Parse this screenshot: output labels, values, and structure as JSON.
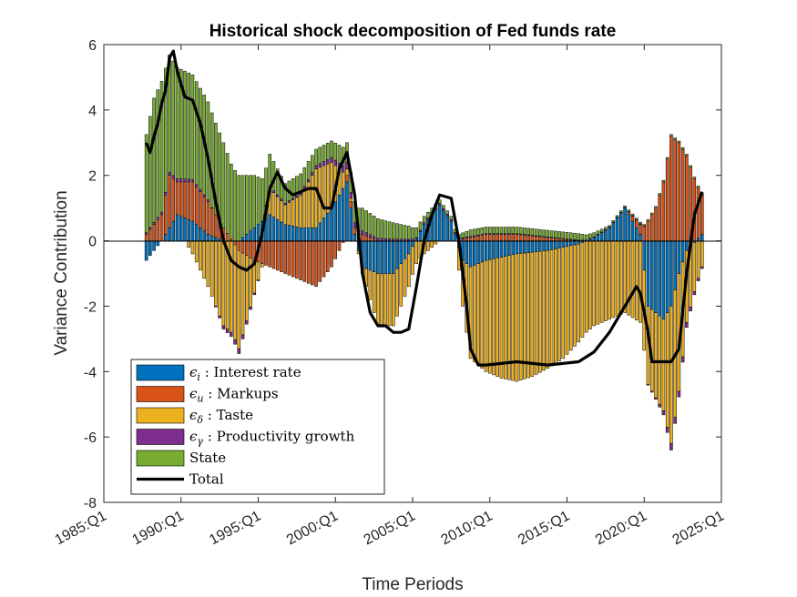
{
  "chart_data": {
    "type": "bar",
    "stacked": true,
    "title": "Historical shock decomposition of Fed funds rate",
    "xlabel": "Time Periods",
    "ylabel": "Variance Contribution",
    "xlim": [
      "1985:Q1",
      "2025:Q1"
    ],
    "ylim": [
      -8,
      6
    ],
    "yticks": [
      "-8",
      "-6",
      "-4",
      "-2",
      "0",
      "2",
      "4",
      "6"
    ],
    "xticks": [
      "1985:Q1",
      "1990:Q1",
      "1995:Q1",
      "2000:Q1",
      "2005:Q1",
      "2010:Q1",
      "2015:Q1",
      "2020:Q1",
      "2025:Q1"
    ],
    "grid": false,
    "legend_position": "bottom-left",
    "first_period": "1987:Q4",
    "last_period": "2023:Q4",
    "series": [
      {
        "name": "ϵ_i : Interest rate",
        "legend_symbol": "ϵ",
        "legend_subscript": "i",
        "legend_text": " : Interest rate",
        "color": "#0072BD",
        "knots": [
          [
            "1987:Q4",
            -0.6
          ],
          [
            "1988:Q4",
            0.0
          ],
          [
            "1989:Q4",
            0.8
          ],
          [
            "1990:Q4",
            0.6
          ],
          [
            "1991:Q4",
            0.2
          ],
          [
            "1992:Q4",
            0.0
          ],
          [
            "1993:Q4",
            0.0
          ],
          [
            "1994:Q4",
            0.4
          ],
          [
            "1995:Q4",
            0.8
          ],
          [
            "1996:Q4",
            0.5
          ],
          [
            "1997:Q4",
            0.4
          ],
          [
            "1998:Q4",
            0.4
          ],
          [
            "1999:Q4",
            1.0
          ],
          [
            "2000:Q4",
            1.8
          ],
          [
            "2001:Q2",
            0.2
          ],
          [
            "2001:Q4",
            -0.8
          ],
          [
            "2002:Q4",
            -1.0
          ],
          [
            "2003:Q4",
            -1.0
          ],
          [
            "2004:Q4",
            -0.4
          ],
          [
            "2005:Q4",
            0.5
          ],
          [
            "2006:Q4",
            1.1
          ],
          [
            "2007:Q3",
            0.6
          ],
          [
            "2008:Q2",
            -0.6
          ],
          [
            "2008:Q4",
            -0.8
          ],
          [
            "2009:Q4",
            -0.6
          ],
          [
            "2011:Q4",
            -0.4
          ],
          [
            "2013:Q4",
            -0.3
          ],
          [
            "2015:Q4",
            -0.1
          ],
          [
            "2016:Q4",
            0.1
          ],
          [
            "2017:Q4",
            0.4
          ],
          [
            "2018:Q4",
            1.0
          ],
          [
            "2019:Q4",
            0.2
          ],
          [
            "2020:Q2",
            -2.0
          ],
          [
            "2021:Q2",
            -2.4
          ],
          [
            "2021:Q4",
            -2.0
          ],
          [
            "2022:Q2",
            -1.0
          ],
          [
            "2022:Q4",
            -0.3
          ],
          [
            "2023:Q4",
            0.2
          ]
        ]
      },
      {
        "name": "ϵ_u : Markups",
        "legend_symbol": "ϵ",
        "legend_subscript": "u",
        "legend_text": " : Markups",
        "color": "#D95319",
        "knots": [
          [
            "1987:Q4",
            0.2
          ],
          [
            "1988:Q4",
            0.8
          ],
          [
            "1989:Q2",
            1.6
          ],
          [
            "1989:Q4",
            1.0
          ],
          [
            "1990:Q4",
            1.2
          ],
          [
            "1991:Q4",
            1.0
          ],
          [
            "1992:Q4",
            0.4
          ],
          [
            "1993:Q4",
            -0.3
          ],
          [
            "1994:Q4",
            -0.6
          ],
          [
            "1995:Q4",
            -0.8
          ],
          [
            "1996:Q4",
            -1.0
          ],
          [
            "1997:Q4",
            -1.2
          ],
          [
            "1998:Q4",
            -1.4
          ],
          [
            "1999:Q4",
            -0.8
          ],
          [
            "2000:Q4",
            0.2
          ],
          [
            "2001:Q4",
            0.2
          ],
          [
            "2002:Q4",
            0.0
          ],
          [
            "2004:Q4",
            0.0
          ],
          [
            "2006:Q4",
            0.0
          ],
          [
            "2007:Q4",
            0.0
          ],
          [
            "2008:Q4",
            0.1
          ],
          [
            "2009:Q4",
            0.2
          ],
          [
            "2011:Q4",
            0.2
          ],
          [
            "2013:Q4",
            0.1
          ],
          [
            "2015:Q4",
            0.0
          ],
          [
            "2017:Q4",
            0.0
          ],
          [
            "2018:Q4",
            0.0
          ],
          [
            "2019:Q4",
            0.3
          ],
          [
            "2020:Q2",
            0.6
          ],
          [
            "2020:Q4",
            1.0
          ],
          [
            "2021:Q2",
            1.8
          ],
          [
            "2021:Q4",
            3.2
          ],
          [
            "2022:Q2",
            3.0
          ],
          [
            "2022:Q4",
            2.6
          ],
          [
            "2023:Q4",
            1.2
          ]
        ]
      },
      {
        "name": "ϵ_δ : Taste",
        "legend_symbol": "ϵ",
        "legend_subscript": "δ",
        "legend_text": " : Taste",
        "color": "#EDB120",
        "knots": [
          [
            "1987:Q4",
            0.0
          ],
          [
            "1989:Q4",
            0.0
          ],
          [
            "1990:Q2",
            0.0
          ],
          [
            "1990:Q4",
            -0.4
          ],
          [
            "1991:Q4",
            -1.4
          ],
          [
            "1992:Q4",
            -2.6
          ],
          [
            "1993:Q4",
            -3.0
          ],
          [
            "1994:Q4",
            -1.0
          ],
          [
            "1995:Q4",
            0.8
          ],
          [
            "1996:Q4",
            0.6
          ],
          [
            "1997:Q4",
            1.0
          ],
          [
            "1998:Q4",
            1.8
          ],
          [
            "1999:Q4",
            1.4
          ],
          [
            "2000:Q4",
            0.2
          ],
          [
            "2001:Q4",
            -0.2
          ],
          [
            "2002:Q4",
            -1.6
          ],
          [
            "2003:Q4",
            -1.6
          ],
          [
            "2004:Q4",
            -1.0
          ],
          [
            "2005:Q4",
            -0.4
          ],
          [
            "2006:Q4",
            0.0
          ],
          [
            "2007:Q4",
            0.0
          ],
          [
            "2008:Q4",
            -2.8
          ],
          [
            "2009:Q4",
            -3.4
          ],
          [
            "2010:Q4",
            -3.7
          ],
          [
            "2011:Q4",
            -3.9
          ],
          [
            "2012:Q4",
            -3.8
          ],
          [
            "2013:Q4",
            -3.6
          ],
          [
            "2014:Q4",
            -3.4
          ],
          [
            "2015:Q4",
            -3.0
          ],
          [
            "2016:Q4",
            -2.6
          ],
          [
            "2017:Q4",
            -2.4
          ],
          [
            "2018:Q4",
            -2.2
          ],
          [
            "2019:Q4",
            -2.5
          ],
          [
            "2020:Q2",
            -2.4
          ],
          [
            "2020:Q4",
            -2.6
          ],
          [
            "2021:Q2",
            -2.8
          ],
          [
            "2021:Q4",
            -4.2
          ],
          [
            "2022:Q2",
            -3.6
          ],
          [
            "2022:Q4",
            -2.2
          ],
          [
            "2023:Q4",
            -0.8
          ]
        ]
      },
      {
        "name": "ϵ_γ : Productivity growth",
        "legend_symbol": "ϵ",
        "legend_subscript": "γ",
        "legend_text": " : Productivity growth",
        "color": "#7E2F8E",
        "knots": [
          [
            "1987:Q4",
            0.05
          ],
          [
            "1989:Q4",
            0.1
          ],
          [
            "1991:Q4",
            0.05
          ],
          [
            "1992:Q4",
            -0.1
          ],
          [
            "1993:Q4",
            -0.15
          ],
          [
            "1995:Q4",
            0.05
          ],
          [
            "1997:Q4",
            0.05
          ],
          [
            "1998:Q4",
            0.1
          ],
          [
            "1999:Q4",
            0.15
          ],
          [
            "2000:Q4",
            0.2
          ],
          [
            "2001:Q4",
            0.1
          ],
          [
            "2003:Q4",
            0.05
          ],
          [
            "2005:Q4",
            0.05
          ],
          [
            "2007:Q4",
            0.05
          ],
          [
            "2009:Q4",
            0.02
          ],
          [
            "2013:Q4",
            0.02
          ],
          [
            "2017:Q4",
            0.02
          ],
          [
            "2019:Q4",
            0.02
          ],
          [
            "2020:Q4",
            -0.05
          ],
          [
            "2021:Q4",
            -0.2
          ],
          [
            "2022:Q4",
            -0.15
          ],
          [
            "2023:Q4",
            -0.05
          ]
        ]
      },
      {
        "name": "State",
        "legend_symbol": "",
        "legend_subscript": "",
        "legend_text": "State",
        "color": "#77AC30",
        "knots": [
          [
            "1987:Q4",
            3.0
          ],
          [
            "1988:Q2",
            3.8
          ],
          [
            "1988:Q4",
            4.0
          ],
          [
            "1989:Q2",
            3.6
          ],
          [
            "1989:Q4",
            3.4
          ],
          [
            "1990:Q4",
            3.2
          ],
          [
            "1991:Q4",
            3.0
          ],
          [
            "1992:Q4",
            2.6
          ],
          [
            "1993:Q4",
            2.0
          ],
          [
            "1994:Q4",
            1.6
          ],
          [
            "1995:Q4",
            1.0
          ],
          [
            "1996:Q4",
            0.6
          ],
          [
            "1997:Q4",
            0.6
          ],
          [
            "1998:Q4",
            0.5
          ],
          [
            "1999:Q4",
            0.5
          ],
          [
            "2000:Q4",
            0.6
          ],
          [
            "2001:Q4",
            0.7
          ],
          [
            "2002:Q4",
            0.6
          ],
          [
            "2003:Q4",
            0.5
          ],
          [
            "2004:Q4",
            0.4
          ],
          [
            "2005:Q4",
            0.2
          ],
          [
            "2006:Q4",
            0.1
          ],
          [
            "2007:Q4",
            0.1
          ],
          [
            "2008:Q4",
            0.2
          ],
          [
            "2009:Q4",
            0.2
          ],
          [
            "2011:Q4",
            0.2
          ],
          [
            "2013:Q4",
            0.2
          ],
          [
            "2015:Q4",
            0.2
          ],
          [
            "2017:Q4",
            0.05
          ],
          [
            "2019:Q4",
            0.05
          ],
          [
            "2021:Q4",
            0.05
          ],
          [
            "2023:Q4",
            0.05
          ]
        ]
      }
    ],
    "total": {
      "name": "Total",
      "color": "#000000",
      "knots": [
        [
          "1987:Q4",
          3.0
        ],
        [
          "1988:Q1",
          2.7
        ],
        [
          "1988:Q2",
          3.2
        ],
        [
          "1988:Q3",
          3.6
        ],
        [
          "1988:Q4",
          4.2
        ],
        [
          "1989:Q1",
          4.6
        ],
        [
          "1989:Q2",
          5.6
        ],
        [
          "1989:Q3",
          5.8
        ],
        [
          "1989:Q4",
          5.2
        ],
        [
          "1990:Q2",
          4.4
        ],
        [
          "1990:Q4",
          4.3
        ],
        [
          "1991:Q2",
          3.6
        ],
        [
          "1991:Q4",
          2.5
        ],
        [
          "1992:Q2",
          1.2
        ],
        [
          "1992:Q4",
          0.0
        ],
        [
          "1993:Q2",
          -0.6
        ],
        [
          "1993:Q4",
          -0.8
        ],
        [
          "1994:Q2",
          -0.9
        ],
        [
          "1994:Q4",
          -0.7
        ],
        [
          "1995:Q2",
          0.2
        ],
        [
          "1995:Q4",
          1.6
        ],
        [
          "1996:Q2",
          2.1
        ],
        [
          "1996:Q4",
          1.6
        ],
        [
          "1997:Q2",
          1.4
        ],
        [
          "1997:Q4",
          1.5
        ],
        [
          "1998:Q2",
          1.6
        ],
        [
          "1998:Q4",
          1.6
        ],
        [
          "1999:Q2",
          1.0
        ],
        [
          "1999:Q4",
          1.0
        ],
        [
          "2000:Q2",
          2.2
        ],
        [
          "2000:Q4",
          2.7
        ],
        [
          "2001:Q2",
          1.4
        ],
        [
          "2001:Q4",
          -1.0
        ],
        [
          "2002:Q2",
          -2.2
        ],
        [
          "2002:Q4",
          -2.6
        ],
        [
          "2003:Q2",
          -2.6
        ],
        [
          "2003:Q4",
          -2.8
        ],
        [
          "2004:Q2",
          -2.8
        ],
        [
          "2004:Q4",
          -2.7
        ],
        [
          "2005:Q2",
          -1.4
        ],
        [
          "2005:Q4",
          0.0
        ],
        [
          "2006:Q2",
          0.8
        ],
        [
          "2006:Q4",
          1.4
        ],
        [
          "2007:Q3",
          1.3
        ],
        [
          "2008:Q1",
          0.0
        ],
        [
          "2008:Q3",
          -2.0
        ],
        [
          "2008:Q4",
          -3.3
        ],
        [
          "2009:Q2",
          -3.8
        ],
        [
          "2009:Q4",
          -3.8
        ],
        [
          "2011:Q4",
          -3.7
        ],
        [
          "2013:Q4",
          -3.8
        ],
        [
          "2015:Q4",
          -3.7
        ],
        [
          "2016:Q4",
          -3.4
        ],
        [
          "2017:Q4",
          -2.8
        ],
        [
          "2018:Q4",
          -2.0
        ],
        [
          "2019:Q3",
          -1.4
        ],
        [
          "2019:Q4",
          -1.6
        ],
        [
          "2020:Q2",
          -2.8
        ],
        [
          "2020:Q3",
          -3.7
        ],
        [
          "2021:Q4",
          -3.7
        ],
        [
          "2022:Q2",
          -3.3
        ],
        [
          "2022:Q4",
          -1.0
        ],
        [
          "2023:Q2",
          0.8
        ],
        [
          "2023:Q4",
          1.5
        ]
      ]
    }
  }
}
